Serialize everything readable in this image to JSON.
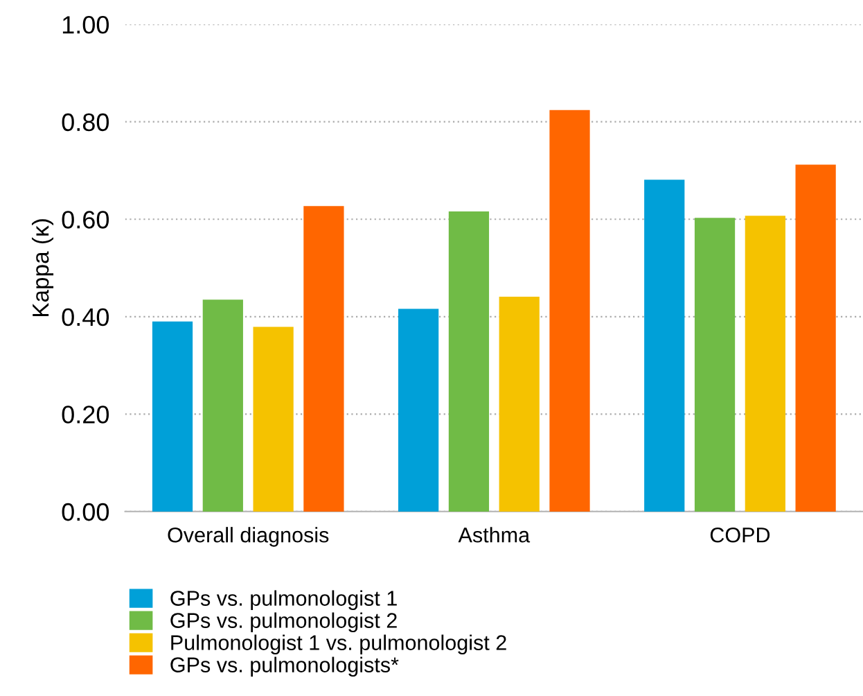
{
  "chart_data": {
    "type": "bar",
    "ylabel": "Kappa (κ)",
    "categories": [
      "Overall diagnosis",
      "Asthma",
      "COPD"
    ],
    "series": [
      {
        "name": "GPs vs. pulmonologist 1",
        "color": "#00a0d8",
        "values": [
          0.39,
          0.416,
          0.681
        ]
      },
      {
        "name": "GPs vs. pulmonologist 2",
        "color": "#70bb46",
        "values": [
          0.435,
          0.616,
          0.603
        ]
      },
      {
        "name": "Pulmonologist 1 vs. pulmonologist 2",
        "color": "#f5c200",
        "values": [
          0.379,
          0.441,
          0.607
        ]
      },
      {
        "name": "GPs vs. pulmonologists*",
        "color": "#ff6600",
        "values": [
          0.627,
          0.824,
          0.712
        ]
      }
    ],
    "ylim": [
      0,
      1
    ],
    "yticks": [
      {
        "value": 0,
        "label": "0.00"
      },
      {
        "value": 0.2,
        "label": "0.20"
      },
      {
        "value": 0.4,
        "label": "0.40"
      },
      {
        "value": 0.6,
        "label": "0.60"
      },
      {
        "value": 0.8,
        "label": "0.80"
      },
      {
        "value": 1,
        "label": "1.00"
      }
    ],
    "grid": "y",
    "legend": "bottom"
  }
}
